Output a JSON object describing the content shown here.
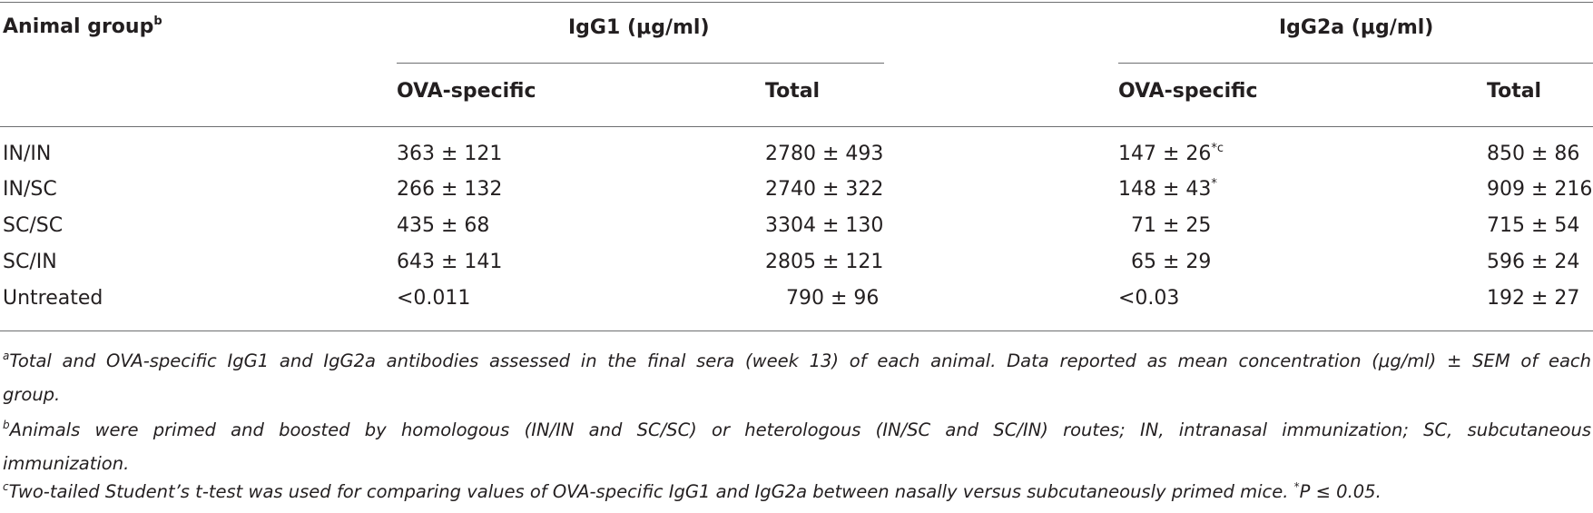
{
  "table": {
    "header": {
      "animal_group": "Animal group",
      "animal_group_mark": "b",
      "igg1": "IgG1 (μg/ml)",
      "igg2a": "IgG2a (μg/ml)",
      "sub": [
        "OVA-specific",
        "Total",
        "OVA-specific",
        "Total"
      ]
    },
    "rows": [
      {
        "group": "IN/IN",
        "igg1_ova": "363 ± 121",
        "igg1_total": "2780 ± 493",
        "igg2a_ova": "147 ± 26",
        "igg2a_ova_mark": "*c",
        "igg2a_total": "850 ± 86"
      },
      {
        "group": "IN/SC",
        "igg1_ova": "266 ± 132",
        "igg1_total": "2740 ± 322",
        "igg2a_ova": "148 ± 43",
        "igg2a_ova_mark": "*",
        "igg2a_total": "909 ± 216"
      },
      {
        "group": "SC/SC",
        "igg1_ova": "435 ± 68",
        "igg1_total": "3304 ± 130",
        "igg2a_ova": "71 ± 25",
        "igg2a_ova_mark": "",
        "igg2a_total": "715 ± 54"
      },
      {
        "group": "SC/IN",
        "igg1_ova": "643 ± 141",
        "igg1_total": "2805 ± 121",
        "igg2a_ova": "65 ± 29",
        "igg2a_ova_mark": "",
        "igg2a_total": "596 ± 24"
      },
      {
        "group": "Untreated",
        "igg1_ova": "<0.011",
        "igg1_total": "790 ± 96",
        "igg2a_ova": "<0.03",
        "igg2a_ova_mark": "",
        "igg2a_total": "192 ± 27"
      }
    ]
  },
  "footnotes": {
    "a_mark": "a",
    "a_line1": "Total and OVA-specific IgG1 and IgG2a antibodies assessed in the final sera (week 13) of each animal. Data reported as mean concentration (μg/ml) ± SEM of each",
    "a_line2": "group.",
    "b_mark": "b",
    "b_line1": "Animals were primed and boosted by homologous (IN/IN and SC/SC) or heterologous (IN/SC and SC/IN) routes; IN, intranasal immunization; SC, subcutaneous",
    "b_line2": "immunization.",
    "c_mark": "c",
    "c_line1": "Two-tailed Student’s t-test was used for comparing values of OVA-specific IgG1 and IgG2a between nasally versus subcutaneously primed mice.",
    "c_star": "*",
    "c_p": "P ≤ 0.05."
  }
}
